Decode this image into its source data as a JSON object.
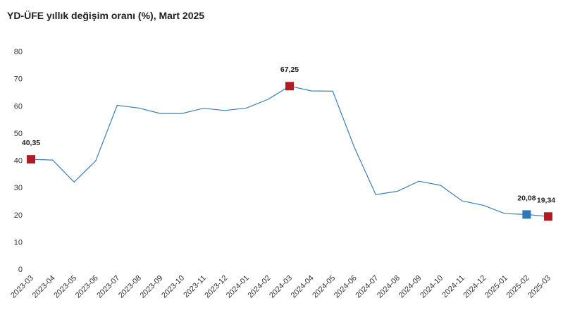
{
  "chart_data": {
    "type": "line",
    "title": "YD-ÜFE yıllık değişim oranı (%), Mart 2025",
    "xlabel": "",
    "ylabel": "",
    "ylim": [
      0,
      80
    ],
    "yticks": [
      0,
      10,
      20,
      30,
      40,
      50,
      60,
      70,
      80
    ],
    "grid": false,
    "legend": "none",
    "line_color": "#3a7fb8",
    "categories": [
      "2023-03",
      "2023-04",
      "2023-05",
      "2023-06",
      "2023-07",
      "2023-08",
      "2023-09",
      "2023-10",
      "2023-11",
      "2023-12",
      "2024-01",
      "2024-02",
      "2024-03",
      "2024-04",
      "2024-05",
      "2024-06",
      "2024-07",
      "2024-08",
      "2024-09",
      "2024-10",
      "2024-11",
      "2024-12",
      "2025-01",
      "2025-02",
      "2025-03"
    ],
    "series": [
      {
        "values": [
          40.35,
          40.1,
          32.0,
          39.8,
          60.2,
          59.2,
          57.2,
          57.2,
          59.1,
          58.3,
          59.2,
          62.4,
          67.25,
          65.5,
          65.4,
          44.8,
          27.4,
          28.6,
          32.3,
          30.8,
          25.1,
          23.4,
          20.4,
          20.08,
          19.34
        ]
      }
    ],
    "highlighted_points": [
      {
        "index": 0,
        "label": "40,35",
        "color": "#b01c1f"
      },
      {
        "index": 12,
        "label": "67,25",
        "color": "#b01c1f"
      },
      {
        "index": 23,
        "label": "20,08",
        "color": "#2e78b7"
      },
      {
        "index": 24,
        "label": "19,34",
        "color": "#b01c1f"
      }
    ]
  }
}
